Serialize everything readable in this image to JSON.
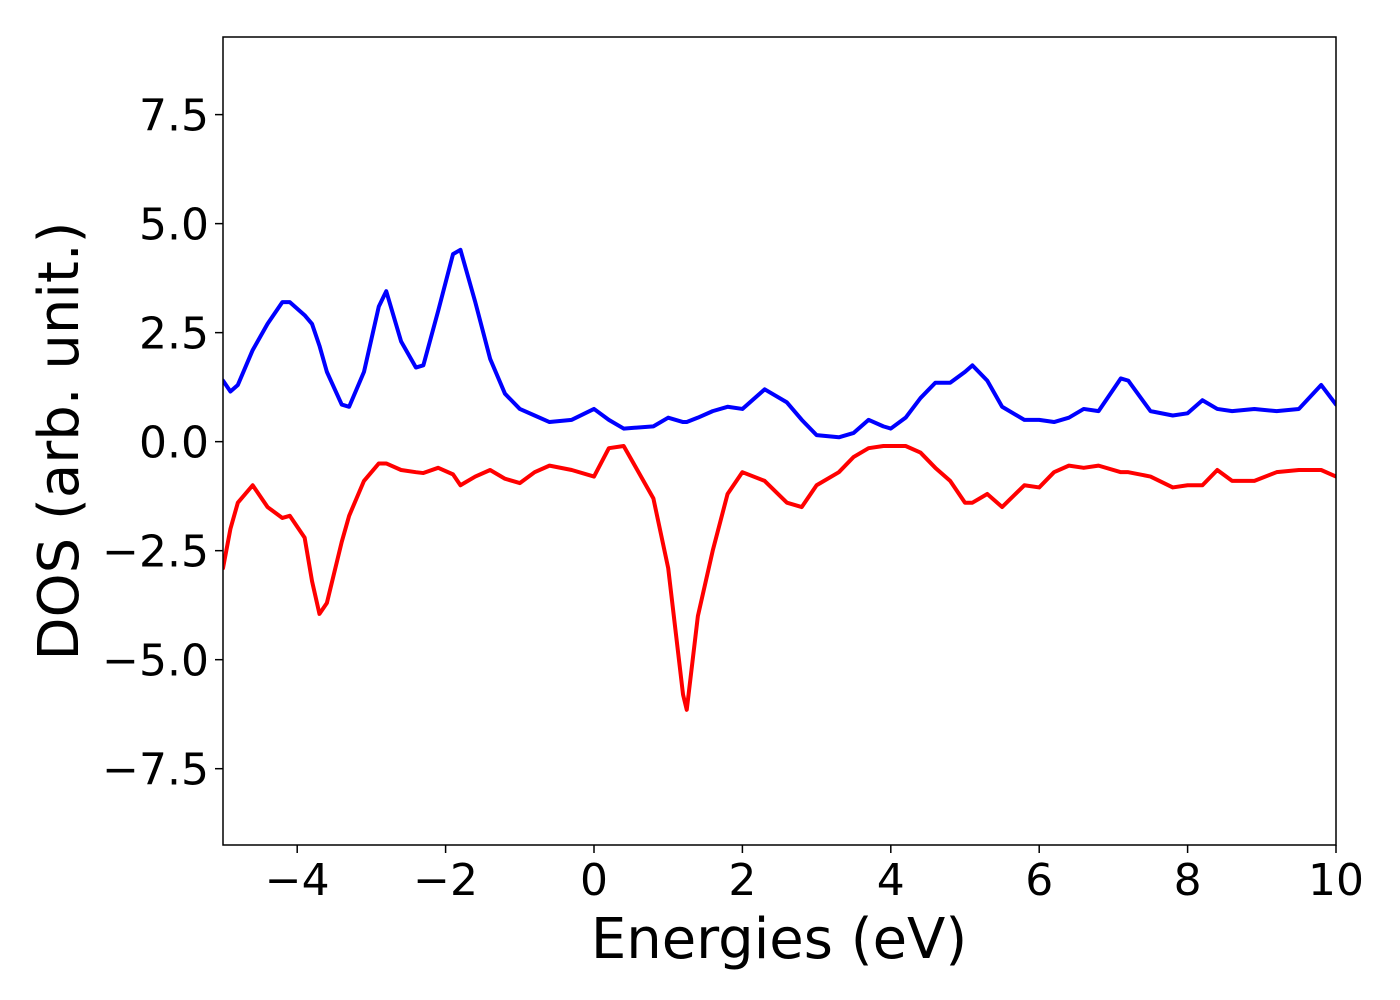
{
  "chart_data": {
    "type": "line",
    "xlabel": "Energies (eV)",
    "ylabel": "DOS (arb. unit.)",
    "x": [
      -5,
      -4.9,
      -4.8,
      -4.6,
      -4.4,
      -4.2,
      -4.1,
      -3.9,
      -3.8,
      -3.7,
      -3.6,
      -3.4,
      -3.3,
      -3.1,
      -2.9,
      -2.8,
      -2.6,
      -2.4,
      -2.3,
      -2.1,
      -1.9,
      -1.8,
      -1.6,
      -1.4,
      -1.2,
      -1.0,
      -0.8,
      -0.6,
      -0.3,
      0,
      0.2,
      0.4,
      0.8,
      1.0,
      1.2,
      1.25,
      1.4,
      1.6,
      1.8,
      2.0,
      2.3,
      2.6,
      2.8,
      3.0,
      3.3,
      3.5,
      3.7,
      3.9,
      4.0,
      4.2,
      4.4,
      4.6,
      4.8,
      5.0,
      5.1,
      5.3,
      5.5,
      5.8,
      6.0,
      6.2,
      6.4,
      6.6,
      6.8,
      7.1,
      7.2,
      7.5,
      7.8,
      8.0,
      8.2,
      8.4,
      8.6,
      8.9,
      9.2,
      9.5,
      9.8,
      10.0
    ],
    "series": [
      {
        "color": "#0000ff",
        "values": [
          1.4,
          1.15,
          1.3,
          2.1,
          2.7,
          3.2,
          3.2,
          2.9,
          2.7,
          2.2,
          1.6,
          0.85,
          0.8,
          1.6,
          3.1,
          3.45,
          2.3,
          1.7,
          1.75,
          3.0,
          4.3,
          4.4,
          3.2,
          1.9,
          1.1,
          0.75,
          0.6,
          0.45,
          0.5,
          0.75,
          0.5,
          0.3,
          0.35,
          0.55,
          0.45,
          0.45,
          0.55,
          0.7,
          0.8,
          0.75,
          1.2,
          0.9,
          0.5,
          0.15,
          0.1,
          0.2,
          0.5,
          0.35,
          0.3,
          0.55,
          1.0,
          1.35,
          1.35,
          1.6,
          1.75,
          1.4,
          0.8,
          0.5,
          0.5,
          0.45,
          0.55,
          0.75,
          0.7,
          1.45,
          1.4,
          0.7,
          0.6,
          0.65,
          0.95,
          0.75,
          0.7,
          0.75,
          0.7,
          0.75,
          1.3,
          0.85
        ]
      },
      {
        "color": "#ff0000",
        "values": [
          -2.9,
          -2.0,
          -1.4,
          -1.0,
          -1.5,
          -1.75,
          -1.7,
          -2.2,
          -3.2,
          -3.95,
          -3.7,
          -2.3,
          -1.7,
          -0.9,
          -0.5,
          -0.5,
          -0.65,
          -0.7,
          -0.72,
          -0.6,
          -0.75,
          -1.0,
          -0.8,
          -0.65,
          -0.85,
          -0.95,
          -0.7,
          -0.55,
          -0.65,
          -0.8,
          -0.15,
          -0.1,
          -1.3,
          -2.9,
          -5.8,
          -6.15,
          -4.0,
          -2.5,
          -1.2,
          -0.7,
          -0.9,
          -1.4,
          -1.5,
          -1.0,
          -0.7,
          -0.35,
          -0.15,
          -0.1,
          -0.1,
          -0.1,
          -0.25,
          -0.6,
          -0.9,
          -1.4,
          -1.4,
          -1.2,
          -1.5,
          -1.0,
          -1.05,
          -0.7,
          -0.55,
          -0.6,
          -0.55,
          -0.7,
          -0.7,
          -0.8,
          -1.05,
          -1.0,
          -1.0,
          -0.65,
          -0.9,
          -0.9,
          -0.7,
          -0.65,
          -0.65,
          -0.8
        ]
      }
    ],
    "xlim": [
      -5,
      10
    ],
    "xticks": [
      {
        "value": -4,
        "label": "−4"
      },
      {
        "value": -2,
        "label": "−2"
      },
      0,
      2,
      4,
      6,
      8,
      10
    ],
    "ylim": [
      -9.25,
      9.28
    ],
    "yticks": [
      {
        "value": -7.5,
        "label": "−7.5"
      },
      {
        "value": -5,
        "label": "−5.0"
      },
      {
        "value": -2.5,
        "label": "−2.5"
      },
      {
        "value": 0,
        "label": "0.0"
      },
      2.5,
      {
        "value": 5,
        "label": "5.0"
      },
      7.5
    ]
  }
}
